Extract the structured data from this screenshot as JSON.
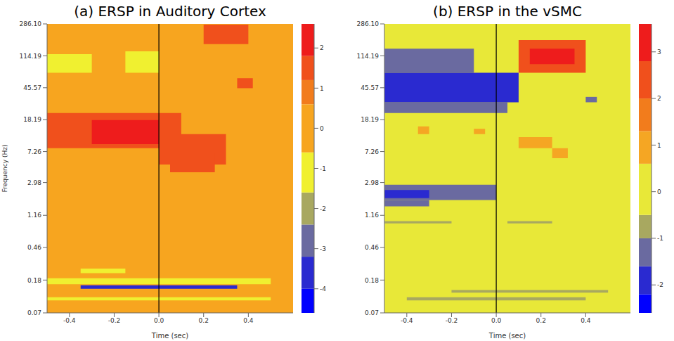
{
  "chart_data": [
    {
      "type": "heatmap",
      "title": "(a) ERSP in Auditory Cortex",
      "x_label": "Time (sec)",
      "y_label": "Frequency (Hz)",
      "log": "y",
      "xlim": [
        -0.5,
        0.6
      ],
      "xticks": [
        -0.4,
        -0.2,
        {
          "value": 0,
          "label": "0.0"
        },
        0.2,
        0.4
      ],
      "ylim": [
        0.07,
        286.1
      ],
      "yticks": [
        0.07,
        0.18,
        0.46,
        1.16,
        2.98,
        7.26,
        18.19,
        45.57,
        114.19,
        {
          "value": 286.1,
          "label": "286.10"
        }
      ],
      "event_time": 0,
      "colorbar": {
        "range": [
          -4.6,
          2.6
        ],
        "ticks": [
          -4,
          -3,
          -2,
          -1,
          0,
          1,
          2
        ],
        "levels": [
          {
            "from": -4.6,
            "to": -4,
            "color": "#0000ff"
          },
          {
            "from": -4,
            "to": -3.2,
            "color": "#2a2ad0"
          },
          {
            "from": -3.2,
            "to": -2.4,
            "color": "#6a6aa0"
          },
          {
            "from": -2.4,
            "to": -1.6,
            "color": "#a8a860"
          },
          {
            "from": -1.6,
            "to": -0.6,
            "color": "#f0f030"
          },
          {
            "from": -0.6,
            "to": 0.6,
            "color": "#f7a51f"
          },
          {
            "from": 0.6,
            "to": 1.2,
            "color": "#f27c1c"
          },
          {
            "from": 1.2,
            "to": 1.8,
            "color": "#f0501c"
          },
          {
            "from": 1.8,
            "to": 2.6,
            "color": "#ee1c1c"
          }
        ]
      },
      "cells": [
        {
          "t": [
            -0.5,
            0.6
          ],
          "f": [
            0.07,
            286.1
          ],
          "value": 0
        },
        {
          "t": [
            -0.5,
            0.1
          ],
          "f": [
            8,
            22
          ],
          "value": 1.5
        },
        {
          "t": [
            -0.3,
            0.0
          ],
          "f": [
            9,
            18
          ],
          "value": 2.2
        },
        {
          "t": [
            0.0,
            0.3
          ],
          "f": [
            5,
            12
          ],
          "value": 1.4
        },
        {
          "t": [
            0.05,
            0.25
          ],
          "f": [
            4,
            7
          ],
          "value": 1.4
        },
        {
          "t": [
            -0.5,
            -0.3
          ],
          "f": [
            70,
            120
          ],
          "value": -0.8
        },
        {
          "t": [
            -0.15,
            0.0
          ],
          "f": [
            70,
            130
          ],
          "value": -0.8
        },
        {
          "t": [
            0.2,
            0.4
          ],
          "f": [
            160,
            280
          ],
          "value": 1.3
        },
        {
          "t": [
            0.35,
            0.42
          ],
          "f": [
            45,
            60
          ],
          "value": 1.2
        },
        {
          "t": [
            -0.35,
            -0.15
          ],
          "f": [
            0.22,
            0.25
          ],
          "value": -0.8
        },
        {
          "t": [
            -0.5,
            0.5
          ],
          "f": [
            0.16,
            0.19
          ],
          "value": -0.8
        },
        {
          "t": [
            -0.35,
            0.35
          ],
          "f": [
            0.14,
            0.155
          ],
          "value": -3.5
        },
        {
          "t": [
            -0.5,
            0.5
          ],
          "f": [
            0.1,
            0.11
          ],
          "value": -0.8
        }
      ]
    },
    {
      "type": "heatmap",
      "title": "(b) ERSP in the vSMC",
      "x_label": "Time (sec)",
      "log": "y",
      "xlim": [
        -0.5,
        0.6
      ],
      "xticks": [
        -0.4,
        -0.2,
        {
          "value": 0,
          "label": "0.0"
        },
        0.2,
        0.4
      ],
      "ylim": [
        0.07,
        286.1
      ],
      "yticks": [
        0.07,
        0.18,
        0.46,
        1.16,
        2.98,
        7.26,
        18.19,
        45.57,
        114.19,
        {
          "value": 286.1,
          "label": "286.10"
        }
      ],
      "event_time": 0,
      "colorbar": {
        "range": [
          -2.6,
          3.6
        ],
        "ticks": [
          -2,
          -1,
          0,
          1,
          2,
          3
        ],
        "levels": [
          {
            "from": -2.6,
            "to": -2.2,
            "color": "#0000ff"
          },
          {
            "from": -2.2,
            "to": -1.6,
            "color": "#2a2ad0"
          },
          {
            "from": -1.6,
            "to": -1.0,
            "color": "#6a6aa0"
          },
          {
            "from": -1.0,
            "to": -0.5,
            "color": "#a8a860"
          },
          {
            "from": -0.5,
            "to": 0.6,
            "color": "#e8e838"
          },
          {
            "from": 0.6,
            "to": 1.3,
            "color": "#f5a623"
          },
          {
            "from": 1.3,
            "to": 2.0,
            "color": "#f27c1c"
          },
          {
            "from": 2.0,
            "to": 2.8,
            "color": "#f0501c"
          },
          {
            "from": 2.8,
            "to": 3.6,
            "color": "#ee1c1c"
          }
        ]
      },
      "cells": [
        {
          "t": [
            -0.5,
            0.6
          ],
          "f": [
            0.07,
            286.1
          ],
          "value": 0
        },
        {
          "t": [
            -0.5,
            -0.1
          ],
          "f": [
            70,
            140
          ],
          "value": -1.3
        },
        {
          "t": [
            -0.5,
            0.05
          ],
          "f": [
            22,
            30
          ],
          "value": -1.3
        },
        {
          "t": [
            -0.5,
            0.1
          ],
          "f": [
            30,
            70
          ],
          "value": -1.9
        },
        {
          "t": [
            0.1,
            0.4
          ],
          "f": [
            70,
            180
          ],
          "value": 2.4
        },
        {
          "t": [
            0.15,
            0.35
          ],
          "f": [
            90,
            140
          ],
          "value": 3.0
        },
        {
          "t": [
            0.4,
            0.45
          ],
          "f": [
            30,
            35
          ],
          "value": -1.3
        },
        {
          "t": [
            -0.35,
            -0.3
          ],
          "f": [
            12,
            15
          ],
          "value": 0.9
        },
        {
          "t": [
            -0.1,
            -0.05
          ],
          "f": [
            12,
            14
          ],
          "value": 0.9
        },
        {
          "t": [
            0.1,
            0.25
          ],
          "f": [
            8,
            11
          ],
          "value": 0.9
        },
        {
          "t": [
            0.25,
            0.32
          ],
          "f": [
            6,
            8
          ],
          "value": 0.9
        },
        {
          "t": [
            -0.5,
            0.0
          ],
          "f": [
            1.8,
            2.8
          ],
          "value": -1.3
        },
        {
          "t": [
            -0.5,
            -0.3
          ],
          "f": [
            1.9,
            2.4
          ],
          "value": -1.9
        },
        {
          "t": [
            -0.5,
            -0.3
          ],
          "f": [
            1.5,
            1.8
          ],
          "value": -1.3
        },
        {
          "t": [
            -0.5,
            -0.2
          ],
          "f": [
            0.92,
            0.98
          ],
          "value": -0.7
        },
        {
          "t": [
            0.05,
            0.25
          ],
          "f": [
            0.92,
            0.98
          ],
          "value": -0.7
        },
        {
          "t": [
            -0.2,
            0.5
          ],
          "f": [
            0.125,
            0.135
          ],
          "value": -0.7
        },
        {
          "t": [
            -0.4,
            0.4
          ],
          "f": [
            0.1,
            0.11
          ],
          "value": -0.7
        }
      ]
    }
  ]
}
